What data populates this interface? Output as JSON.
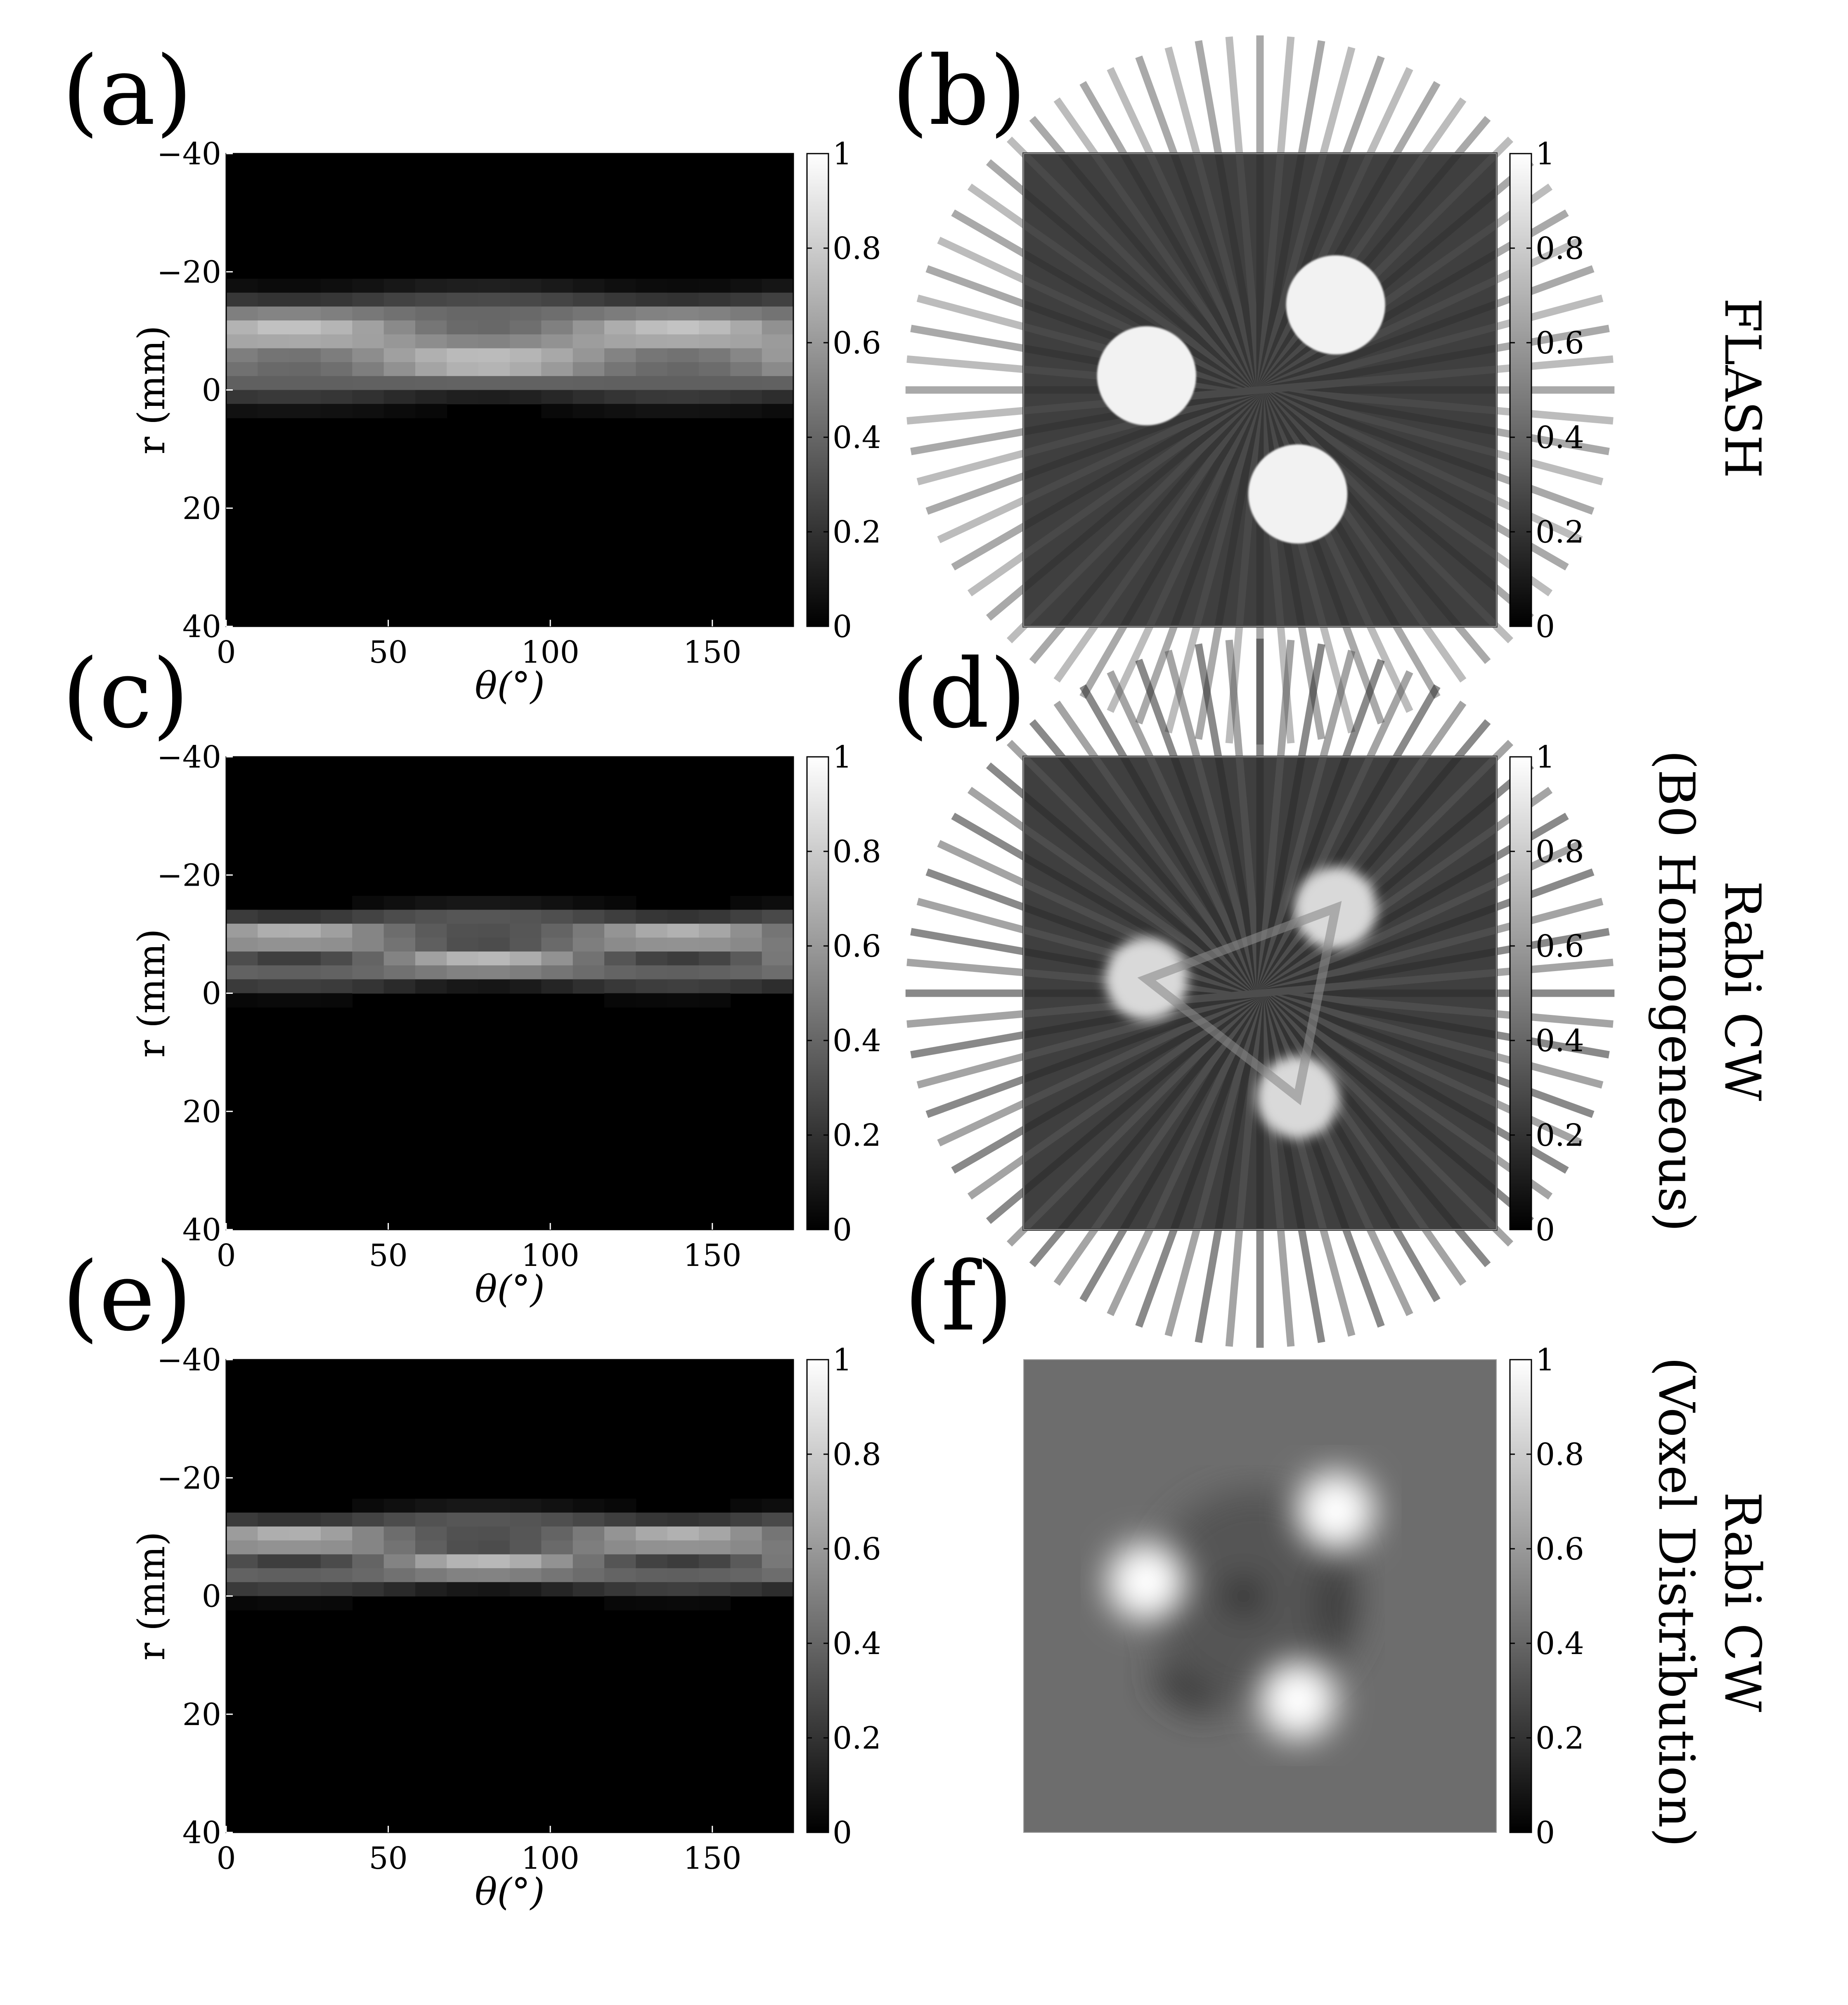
{
  "figure": {
    "panels": [
      {
        "label": "(a)",
        "type": "sinogram",
        "mode": "flash"
      },
      {
        "label": "(b)",
        "type": "reconstruction",
        "mode": "flash"
      },
      {
        "label": "(c)",
        "type": "sinogram",
        "mode": "cw"
      },
      {
        "label": "(d)",
        "type": "reconstruction",
        "mode": "cw"
      },
      {
        "label": "(e)",
        "type": "sinogram",
        "mode": "voxel"
      },
      {
        "label": "(f)",
        "type": "reconstruction",
        "mode": "voxel"
      }
    ],
    "row_labels": [
      {
        "lines": [
          "FLASH"
        ]
      },
      {
        "lines": [
          "Rabi CW",
          "(B0 Homogeneous)"
        ]
      },
      {
        "lines": [
          "Rabi CW",
          "(Voxel Distribution)"
        ]
      }
    ]
  },
  "chart_data": [
    {
      "type": "heatmap",
      "panel": "(a)",
      "xlabel": "θ(°)",
      "ylabel": "r (mm)",
      "xlim": [
        0,
        175
      ],
      "ylim": [
        40,
        -40
      ],
      "xticks": [
        0,
        50,
        100,
        150
      ],
      "yticks": [
        -40,
        -20,
        0,
        20,
        40
      ],
      "colorbar": {
        "range": [
          0,
          1
        ],
        "ticks": [
          0,
          0.2,
          0.4,
          0.6,
          0.8,
          1
        ]
      },
      "colormap": "gray",
      "features": {
        "sinusoids": [
          {
            "amplitude_mm": 5.5,
            "offset_mm": 5.5,
            "phase_deg": 20
          },
          {
            "amplitude_mm": 5.5,
            "offset_mm": 5.5,
            "phase_deg": 140
          },
          {
            "amplitude_mm": 5.5,
            "offset_mm": 5.5,
            "phase_deg": 260
          }
        ],
        "band_width_mm": 5.5
      }
    },
    {
      "type": "heatmap",
      "panel": "(b)",
      "colorbar": {
        "range": [
          0,
          1
        ],
        "ticks": [
          0,
          0.2,
          0.4,
          0.6,
          0.8,
          1
        ]
      },
      "colormap": "gray",
      "features": {
        "discs": 3
      }
    },
    {
      "type": "heatmap",
      "panel": "(c)",
      "xlabel": "θ(°)",
      "ylabel": "r (mm)",
      "xlim": [
        0,
        175
      ],
      "ylim": [
        40,
        -40
      ],
      "xticks": [
        0,
        50,
        100,
        150
      ],
      "yticks": [
        -40,
        -20,
        0,
        20,
        40
      ],
      "colorbar": {
        "range": [
          0,
          1
        ],
        "ticks": [
          0,
          0.2,
          0.4,
          0.6,
          0.8,
          1
        ]
      },
      "colormap": "gray",
      "features": {
        "sinusoids": [
          {
            "amplitude_mm": 4.5,
            "offset_mm": 5.5,
            "phase_deg": 20
          },
          {
            "amplitude_mm": 4.5,
            "offset_mm": 5.5,
            "phase_deg": 140
          },
          {
            "amplitude_mm": 4.5,
            "offset_mm": 5.5,
            "phase_deg": 260
          }
        ],
        "band_width_mm": 3.5
      }
    },
    {
      "type": "heatmap",
      "panel": "(d)",
      "colorbar": {
        "range": [
          0,
          1
        ],
        "ticks": [
          0,
          0.2,
          0.4,
          0.6,
          0.8,
          1
        ]
      },
      "colormap": "gray",
      "features": {
        "discs": 3
      }
    },
    {
      "type": "heatmap",
      "panel": "(e)",
      "xlabel": "θ(°)",
      "ylabel": "r (mm)",
      "xlim": [
        0,
        175
      ],
      "ylim": [
        40,
        -40
      ],
      "xticks": [
        0,
        50,
        100,
        150
      ],
      "yticks": [
        -40,
        -20,
        0,
        20,
        40
      ],
      "colorbar": {
        "range": [
          0,
          1
        ],
        "ticks": [
          0,
          0.2,
          0.4,
          0.6,
          0.8,
          1
        ]
      },
      "colormap": "gray",
      "features": {
        "sinusoids": [
          {
            "amplitude_mm": 4.5,
            "offset_mm": 5.5,
            "phase_deg": 20
          },
          {
            "amplitude_mm": 4.5,
            "offset_mm": 5.5,
            "phase_deg": 140
          },
          {
            "amplitude_mm": 4.5,
            "offset_mm": 5.5,
            "phase_deg": 260
          }
        ],
        "band_width_mm": 3.5
      }
    },
    {
      "type": "heatmap",
      "panel": "(f)",
      "colorbar": {
        "range": [
          0,
          1
        ],
        "ticks": [
          0,
          0.2,
          0.4,
          0.6,
          0.8,
          1
        ]
      },
      "colormap": "gray",
      "features": {
        "discs": 3
      }
    }
  ]
}
